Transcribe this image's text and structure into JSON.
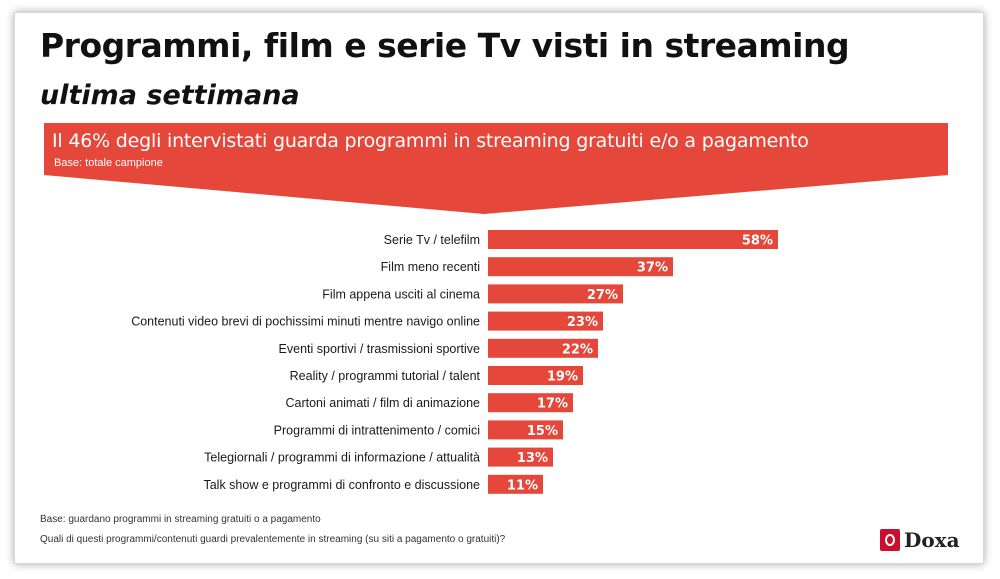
{
  "title": "Programmi, film e serie Tv visti in streaming",
  "subtitle": "ultima settimana",
  "banner": {
    "text": "Il 46% degli intervistati guarda programmi in streaming gratuiti e/o a pagamento",
    "base": "Base: totale campione",
    "color": "#e5473a"
  },
  "chart_data": {
    "type": "bar",
    "orientation": "horizontal",
    "categories": [
      "Serie Tv / telefilm",
      "Film meno recenti",
      "Film appena usciti al cinema",
      "Contenuti video brevi di pochissimi minuti mentre navigo online",
      "Eventi sportivi / trasmissioni sportive",
      "Reality / programmi tutorial / talent",
      "Cartoni animati / film di animazione",
      "Programmi di intrattenimento / comici",
      "Telegiornali / programmi di informazione / attualità",
      "Talk show e programmi di confronto e discussione"
    ],
    "values": [
      58,
      37,
      27,
      23,
      22,
      19,
      17,
      15,
      13,
      11
    ],
    "value_labels": [
      "58%",
      "37%",
      "27%",
      "23%",
      "22%",
      "19%",
      "17%",
      "15%",
      "13%",
      "11%"
    ],
    "unit": "%",
    "bar_color": "#e5473a",
    "grid": false,
    "legend": "none"
  },
  "footnotes": {
    "base": "Base: guardano programmi in streaming gratuiti o a pagamento",
    "question": "Quali di questi programmi/contenuti guardi prevalentemente in streaming (su siti a pagamento o gratuiti)?"
  },
  "logo": {
    "text": "Doxa",
    "icon": "doxa-logo-icon",
    "color": "#c8102e"
  }
}
